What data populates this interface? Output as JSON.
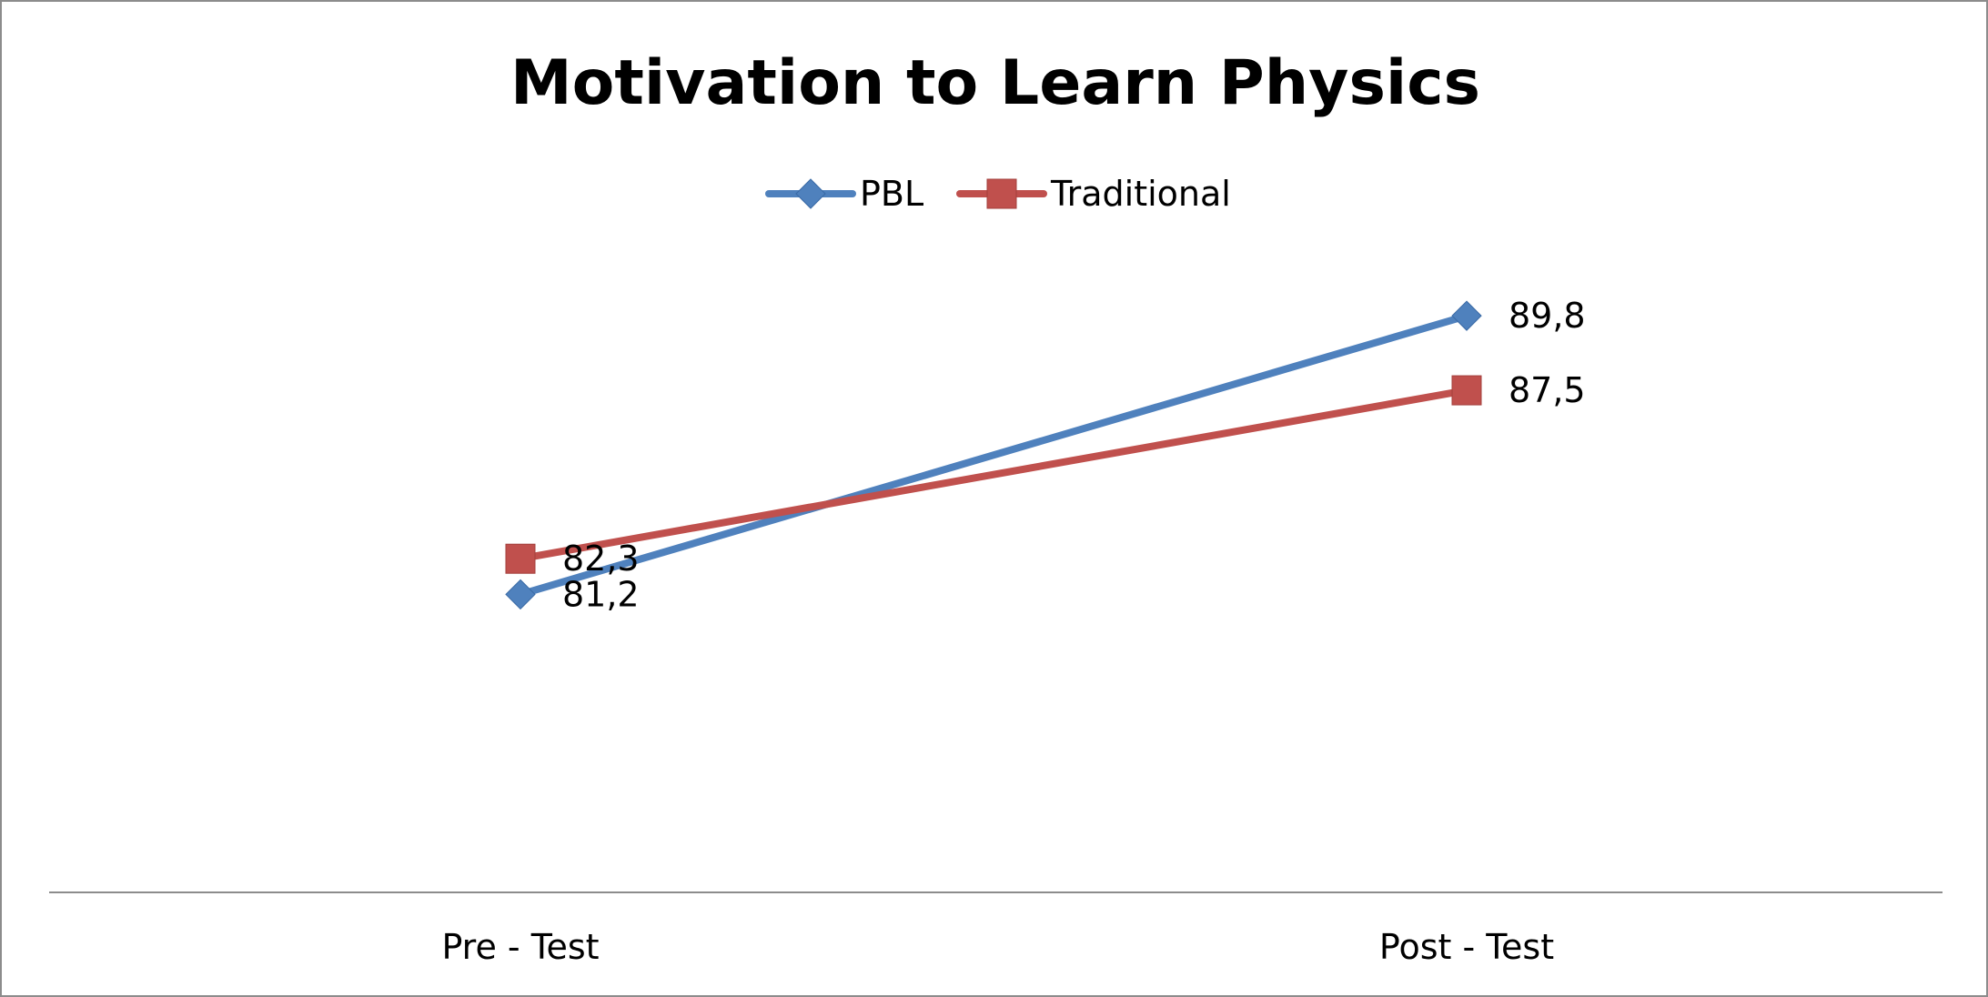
{
  "chart_data": {
    "type": "line",
    "title": "Motivation to Learn Physics",
    "categories": [
      "Pre - Test",
      "Post - Test"
    ],
    "series": [
      {
        "name": "PBL",
        "values": [
          81.2,
          89.8
        ],
        "labels": [
          "81,2",
          "89,8"
        ],
        "color": "#4f81bd",
        "marker": "diamond"
      },
      {
        "name": "Traditional",
        "values": [
          82.3,
          87.5
        ],
        "labels": [
          "82,3",
          "87,5"
        ],
        "color": "#c0504d",
        "marker": "square"
      }
    ],
    "legend": "top-center",
    "grid": false,
    "ylim": [
      72.0,
      95.0
    ],
    "xlabel": "",
    "ylabel": ""
  }
}
